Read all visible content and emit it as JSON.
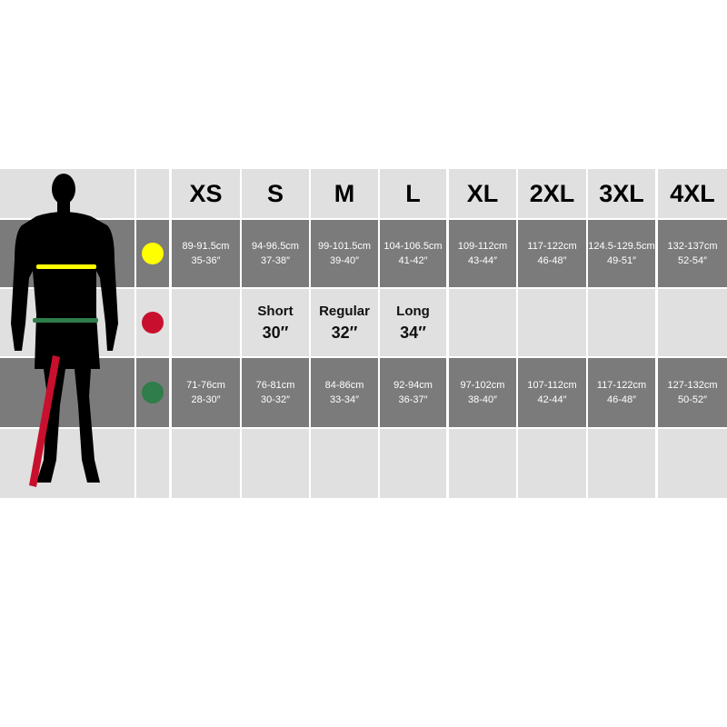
{
  "sizes": [
    "XS",
    "S",
    "M",
    "L",
    "XL",
    "2XL",
    "3XL",
    "4XL"
  ],
  "colors": {
    "chest": "#ffff00",
    "inside_leg": "#c8102e",
    "waist": "#2e7d4a",
    "dark_row": "#7b7b7b",
    "light_row": "#e0e0e0"
  },
  "chest": [
    {
      "cm": "89-91.5cm",
      "in": "35-36″"
    },
    {
      "cm": "94-96.5cm",
      "in": "37-38″"
    },
    {
      "cm": "99-101.5cm",
      "in": "39-40″"
    },
    {
      "cm": "104-106.5cm",
      "in": "41-42″"
    },
    {
      "cm": "109-112cm",
      "in": "43-44″"
    },
    {
      "cm": "117-122cm",
      "in": "46-48″"
    },
    {
      "cm": "124.5-129.5cm",
      "in": "49-51″"
    },
    {
      "cm": "132-137cm",
      "in": "52-54″"
    }
  ],
  "inside_leg": [
    {
      "label": "",
      "value": ""
    },
    {
      "label": "Short",
      "value": "30″"
    },
    {
      "label": "Regular",
      "value": "32″"
    },
    {
      "label": "Long",
      "value": "34″"
    },
    {
      "label": "",
      "value": ""
    },
    {
      "label": "",
      "value": ""
    },
    {
      "label": "",
      "value": ""
    },
    {
      "label": "",
      "value": ""
    }
  ],
  "waist": [
    {
      "cm": "71-76cm",
      "in": "28-30″"
    },
    {
      "cm": "76-81cm",
      "in": "30-32″"
    },
    {
      "cm": "84-86cm",
      "in": "33-34″"
    },
    {
      "cm": "92-94cm",
      "in": "36-37″"
    },
    {
      "cm": "97-102cm",
      "in": "38-40″"
    },
    {
      "cm": "107-112cm",
      "in": "42-44″"
    },
    {
      "cm": "117-122cm",
      "in": "46-48″"
    },
    {
      "cm": "127-132cm",
      "in": "50-52″"
    }
  ]
}
